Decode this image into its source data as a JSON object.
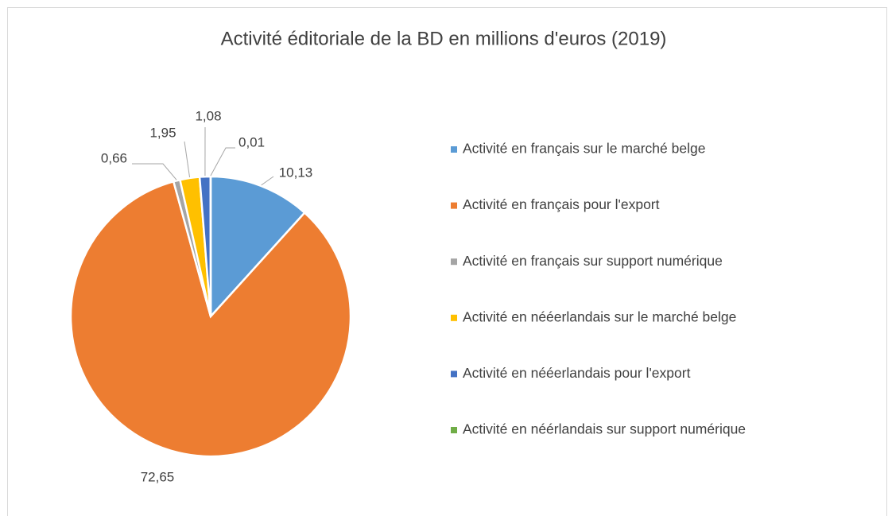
{
  "chart_data": {
    "type": "pie",
    "title": "Activité éditoriale de la BD en millions d'euros (2019)",
    "categories": [
      "Activité en français sur le marché belge",
      "Activité en français pour l'export",
      "Activité en français sur support numérique",
      "Activité en nééerlandais sur le marché belge",
      "Activité en nééerlandais pour l'export",
      "Activité en néérlandais sur support numérique"
    ],
    "values": [
      10.13,
      72.65,
      0.66,
      1.95,
      1.08,
      0.01
    ],
    "value_labels": [
      "10,13",
      "72,65",
      "0,66",
      "1,95",
      "1,08",
      "0,01"
    ],
    "colors": [
      "#5b9bd5",
      "#ed7d31",
      "#a5a5a5",
      "#ffc000",
      "#4472c4",
      "#70ad47"
    ],
    "legend": "right"
  }
}
